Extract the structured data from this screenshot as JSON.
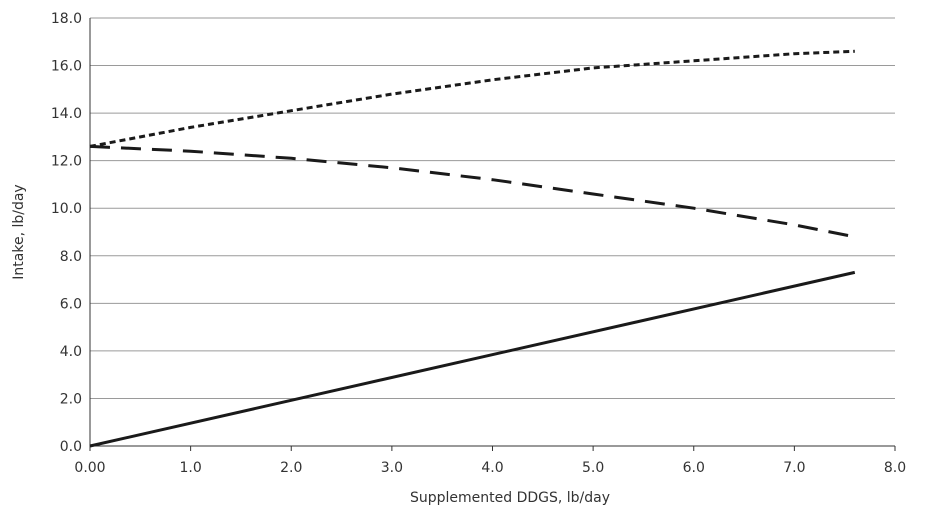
{
  "chart_data": {
    "type": "line",
    "xlabel": "Supplemented DDGS, lb/day",
    "ylabel": "Intake, lb/day",
    "xlim": [
      0,
      8
    ],
    "ylim": [
      0,
      18
    ],
    "xticks": [
      "0.00",
      "1.0",
      "2.0",
      "3.0",
      "4.0",
      "5.0",
      "6.0",
      "7.0",
      "8.0"
    ],
    "yticks": [
      "0.0",
      "2.0",
      "4.0",
      "6.0",
      "8.0",
      "10.0",
      "12.0",
      "14.0",
      "16.0",
      "18.0"
    ],
    "grid": "horizontal",
    "legend": "none",
    "series": [
      {
        "style": "dotted",
        "color": "#1a1a1a",
        "x": [
          0,
          1,
          2,
          3,
          4,
          5,
          6,
          7,
          7.6
        ],
        "y": [
          12.6,
          13.4,
          14.1,
          14.8,
          15.4,
          15.9,
          16.2,
          16.5,
          16.6
        ]
      },
      {
        "style": "dashed",
        "color": "#1a1a1a",
        "x": [
          0,
          1,
          2,
          3,
          4,
          5,
          6,
          7,
          7.6
        ],
        "y": [
          12.6,
          12.4,
          12.1,
          11.7,
          11.2,
          10.6,
          10.0,
          9.3,
          8.8
        ]
      },
      {
        "style": "solid",
        "color": "#1a1a1a",
        "x": [
          0,
          7.6
        ],
        "y": [
          0,
          7.3
        ]
      }
    ]
  }
}
